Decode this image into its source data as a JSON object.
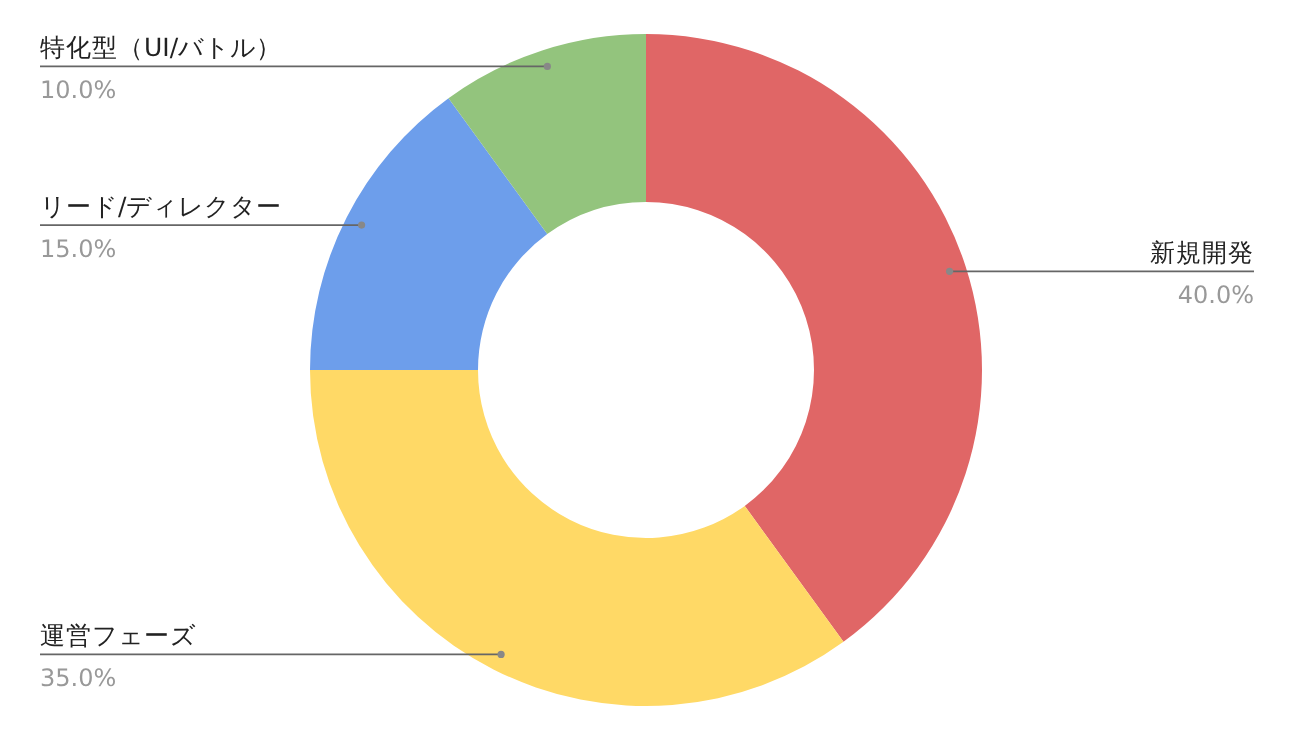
{
  "chart_data": {
    "type": "donut",
    "categories": [
      "新規開発",
      "運営フェーズ",
      "リード/ディレクター",
      "特化型（UI/バトル）"
    ],
    "values": [
      40.0,
      35.0,
      15.0,
      10.0
    ],
    "value_labels": [
      "40.0%",
      "35.0%",
      "15.0%",
      "10.0%"
    ],
    "colors": [
      "#e06666",
      "#ffd966",
      "#6d9eeb",
      "#93c47d"
    ]
  }
}
